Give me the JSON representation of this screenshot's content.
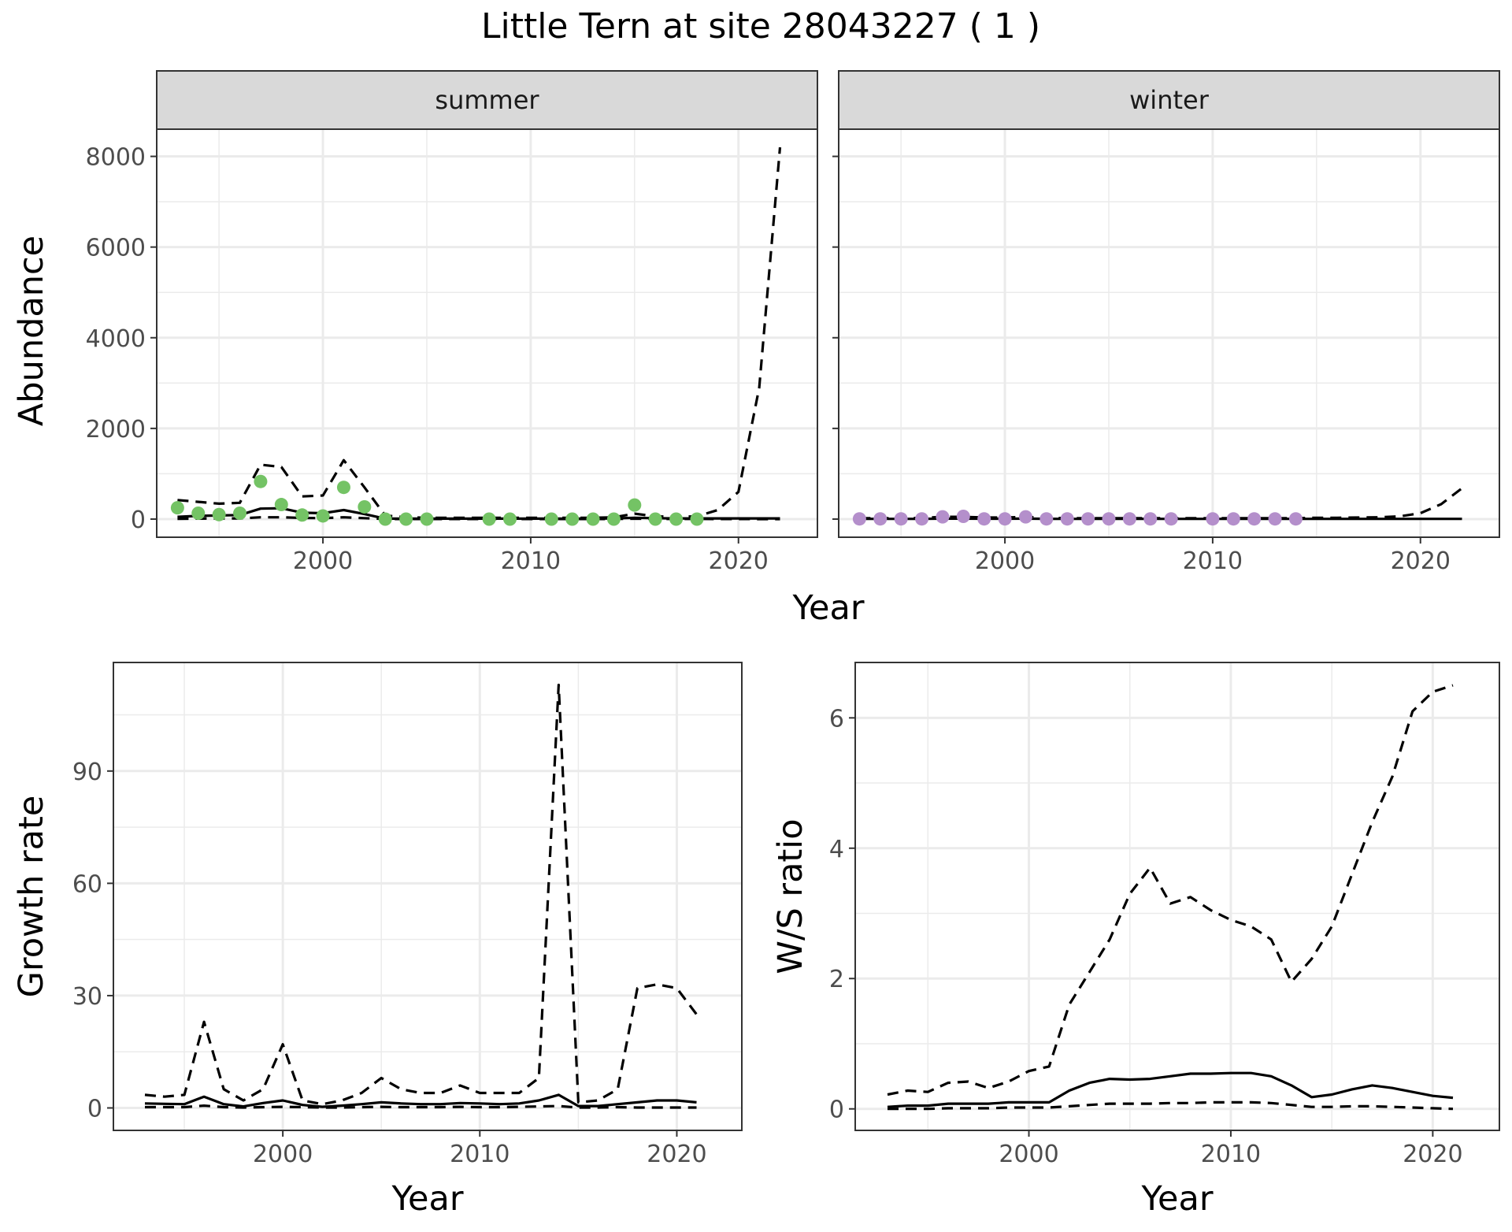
{
  "title": "Little Tern at site 28043227 ( 1 )",
  "top": {
    "x_axis_title": "Year",
    "y_axis_title": "Abundance"
  },
  "colors": {
    "summer_points": "#74c365",
    "winter_points": "#b48fcb",
    "lines": "#000000"
  },
  "chart_data": [
    {
      "type": "line",
      "facet": "summer",
      "xlabel": "Year",
      "ylabel": "Abundance",
      "xlim": [
        1992,
        2023.8
      ],
      "ylim": [
        -400,
        8600
      ],
      "x_ticks": [
        2000,
        2010,
        2020
      ],
      "y_ticks": [
        0,
        2000,
        4000,
        6000,
        8000
      ],
      "grid": true,
      "series": [
        {
          "style": "solid",
          "x": [
            1993,
            1994,
            1995,
            1996,
            1997,
            1998,
            1999,
            2000,
            2001,
            2002,
            2003,
            2004,
            2005,
            2006,
            2007,
            2008,
            2009,
            2010,
            2011,
            2012,
            2013,
            2014,
            2015,
            2016,
            2017,
            2018,
            2019,
            2020,
            2021,
            2022
          ],
          "y": [
            50,
            70,
            80,
            90,
            230,
            240,
            140,
            130,
            200,
            110,
            10,
            10,
            10,
            10,
            10,
            10,
            10,
            10,
            10,
            10,
            10,
            15,
            30,
            20,
            15,
            15,
            15,
            15,
            15,
            15
          ]
        },
        {
          "style": "dashed",
          "x": [
            1993,
            1994,
            1995,
            1996,
            1997,
            1998,
            1999,
            2000,
            2001,
            2002,
            2003,
            2004,
            2005,
            2006,
            2007,
            2008,
            2009,
            2010,
            2011,
            2012,
            2013,
            2014,
            2015,
            2016,
            2017,
            2018,
            2019,
            2020,
            2021,
            2022
          ],
          "y": [
            420,
            380,
            340,
            360,
            1200,
            1150,
            500,
            520,
            1300,
            700,
            80,
            40,
            30,
            30,
            30,
            30,
            30,
            30,
            30,
            30,
            30,
            40,
            120,
            60,
            50,
            60,
            200,
            600,
            2900,
            8200
          ]
        },
        {
          "style": "dashed",
          "x": [
            1993,
            1994,
            1995,
            1996,
            1997,
            1998,
            1999,
            2000,
            2001,
            2002,
            2003,
            2004,
            2005,
            2006,
            2007,
            2008,
            2009,
            2010,
            2011,
            2012,
            2013,
            2014,
            2015,
            2016,
            2017,
            2018,
            2019,
            2020,
            2021,
            2022
          ],
          "y": [
            5,
            10,
            15,
            15,
            40,
            40,
            25,
            20,
            40,
            20,
            2,
            2,
            2,
            2,
            2,
            2,
            2,
            2,
            2,
            2,
            2,
            3,
            8,
            4,
            3,
            3,
            2,
            1,
            0,
            0
          ]
        }
      ],
      "points": {
        "x": [
          1993,
          1994,
          1995,
          1996,
          1997,
          1998,
          1999,
          2000,
          2001,
          2002,
          2003,
          2004,
          2005,
          2008,
          2009,
          2011,
          2012,
          2013,
          2014,
          2015,
          2016,
          2017,
          2018
        ],
        "y": [
          250,
          130,
          100,
          130,
          830,
          320,
          90,
          70,
          700,
          270,
          0,
          0,
          0,
          0,
          0,
          0,
          0,
          0,
          0,
          310,
          0,
          0,
          0
        ]
      }
    },
    {
      "type": "line",
      "facet": "winter",
      "xlabel": "Year",
      "ylabel": "Abundance",
      "xlim": [
        1992,
        2023.8
      ],
      "ylim": [
        -400,
        8600
      ],
      "x_ticks": [
        2000,
        2010,
        2020
      ],
      "y_ticks": [
        0,
        2000,
        4000,
        6000,
        8000
      ],
      "grid": true,
      "series": [
        {
          "style": "solid",
          "x": [
            1993,
            1994,
            1995,
            1996,
            1997,
            1998,
            1999,
            2000,
            2001,
            2002,
            2003,
            2004,
            2005,
            2006,
            2007,
            2008,
            2009,
            2010,
            2011,
            2012,
            2013,
            2014,
            2015,
            2016,
            2017,
            2018,
            2019,
            2020,
            2021,
            2022
          ],
          "y": [
            5,
            5,
            5,
            5,
            10,
            10,
            8,
            8,
            10,
            6,
            4,
            4,
            4,
            4,
            4,
            4,
            4,
            4,
            4,
            4,
            4,
            4,
            5,
            4,
            4,
            4,
            4,
            4,
            4,
            4
          ]
        },
        {
          "style": "dashed",
          "x": [
            1993,
            1994,
            1995,
            1996,
            1997,
            1998,
            1999,
            2000,
            2001,
            2002,
            2003,
            2004,
            2005,
            2006,
            2007,
            2008,
            2009,
            2010,
            2011,
            2012,
            2013,
            2014,
            2015,
            2016,
            2017,
            2018,
            2019,
            2020,
            2021,
            2022
          ],
          "y": [
            20,
            20,
            20,
            25,
            50,
            50,
            35,
            35,
            50,
            30,
            20,
            20,
            20,
            20,
            20,
            20,
            20,
            20,
            20,
            20,
            20,
            20,
            30,
            30,
            35,
            40,
            60,
            130,
            330,
            680
          ]
        }
      ],
      "points": {
        "x": [
          1993,
          1994,
          1995,
          1996,
          1997,
          1998,
          1999,
          2000,
          2001,
          2002,
          2003,
          2004,
          2005,
          2006,
          2007,
          2008,
          2010,
          2011,
          2012,
          2013,
          2014
        ],
        "y": [
          5,
          5,
          5,
          5,
          50,
          60,
          5,
          5,
          50,
          5,
          5,
          5,
          5,
          5,
          5,
          5,
          5,
          5,
          5,
          5,
          5
        ]
      }
    },
    {
      "type": "line",
      "panel": "growth",
      "xlabel": "Year",
      "ylabel": "Growth rate",
      "xlim": [
        1991.4,
        2023.3
      ],
      "ylim": [
        -6,
        119
      ],
      "x_ticks": [
        2000,
        2010,
        2020
      ],
      "y_ticks": [
        0,
        30,
        60,
        90
      ],
      "grid": true,
      "series": [
        {
          "style": "solid",
          "x": [
            1993,
            1994,
            1995,
            1996,
            1997,
            1998,
            1999,
            2000,
            2001,
            2002,
            2003,
            2004,
            2005,
            2006,
            2007,
            2008,
            2009,
            2010,
            2011,
            2012,
            2013,
            2014,
            2015,
            2016,
            2017,
            2018,
            2019,
            2020,
            2021
          ],
          "y": [
            1.2,
            1.1,
            1.0,
            3.0,
            1.0,
            0.4,
            1.3,
            2.0,
            0.8,
            0.3,
            0.6,
            1.0,
            1.5,
            1.2,
            1.0,
            1.0,
            1.3,
            1.2,
            1.0,
            1.2,
            2.0,
            3.5,
            0.5,
            0.5,
            1.0,
            1.5,
            2.0,
            2.0,
            1.5
          ]
        },
        {
          "style": "dashed",
          "x": [
            1993,
            1994,
            1995,
            1996,
            1997,
            1998,
            1999,
            2000,
            2001,
            2002,
            2003,
            2004,
            2005,
            2006,
            2007,
            2008,
            2009,
            2010,
            2011,
            2012,
            2013,
            2014,
            2015,
            2016,
            2017,
            2018,
            2019,
            2020,
            2021
          ],
          "y": [
            3.5,
            3.0,
            3.5,
            23,
            5,
            2,
            5,
            17,
            2,
            1,
            2,
            4,
            8,
            5,
            4,
            4,
            6,
            4,
            4,
            4,
            8,
            113,
            1.5,
            2,
            5,
            32,
            33,
            32,
            25
          ]
        },
        {
          "style": "dashed",
          "x": [
            1993,
            1994,
            1995,
            1996,
            1997,
            1998,
            1999,
            2000,
            2001,
            2002,
            2003,
            2004,
            2005,
            2006,
            2007,
            2008,
            2009,
            2010,
            2011,
            2012,
            2013,
            2014,
            2015,
            2016,
            2017,
            2018,
            2019,
            2020,
            2021
          ],
          "y": [
            0.2,
            0.2,
            0.2,
            0.6,
            0.2,
            0.1,
            0.2,
            0.3,
            0.2,
            0.1,
            0.1,
            0.2,
            0.3,
            0.2,
            0.2,
            0.2,
            0.3,
            0.2,
            0.2,
            0.3,
            0.4,
            0.5,
            0.1,
            0.1,
            0.2,
            0.1,
            0.1,
            0.1,
            0.1
          ]
        }
      ]
    },
    {
      "type": "line",
      "panel": "ratio",
      "xlabel": "Year",
      "ylabel": "W/S ratio",
      "xlim": [
        1991.4,
        2023.3
      ],
      "ylim": [
        -0.33,
        6.85
      ],
      "x_ticks": [
        2000,
        2010,
        2020
      ],
      "y_ticks": [
        0,
        2,
        4,
        6
      ],
      "grid": true,
      "series": [
        {
          "style": "solid",
          "x": [
            1993,
            1994,
            1995,
            1996,
            1997,
            1998,
            1999,
            2000,
            2001,
            2002,
            2003,
            2004,
            2005,
            2006,
            2007,
            2008,
            2009,
            2010,
            2011,
            2012,
            2013,
            2014,
            2015,
            2016,
            2017,
            2018,
            2019,
            2020,
            2021
          ],
          "y": [
            0.03,
            0.05,
            0.05,
            0.08,
            0.08,
            0.08,
            0.1,
            0.1,
            0.1,
            0.28,
            0.4,
            0.46,
            0.45,
            0.46,
            0.5,
            0.54,
            0.54,
            0.55,
            0.55,
            0.5,
            0.36,
            0.18,
            0.22,
            0.3,
            0.36,
            0.32,
            0.26,
            0.2,
            0.17
          ]
        },
        {
          "style": "dashed",
          "x": [
            1993,
            1994,
            1995,
            1996,
            1997,
            1998,
            1999,
            2000,
            2001,
            2002,
            2003,
            2004,
            2005,
            2006,
            2007,
            2008,
            2009,
            2010,
            2011,
            2012,
            2013,
            2014,
            2015,
            2016,
            2017,
            2018,
            2019,
            2020,
            2021
          ],
          "y": [
            0.22,
            0.28,
            0.26,
            0.4,
            0.42,
            0.32,
            0.42,
            0.58,
            0.65,
            1.6,
            2.1,
            2.6,
            3.3,
            3.7,
            3.15,
            3.25,
            3.05,
            2.9,
            2.8,
            2.6,
            1.95,
            2.3,
            2.8,
            3.6,
            4.4,
            5.1,
            6.1,
            6.4,
            6.5
          ]
        },
        {
          "style": "dashed",
          "x": [
            1993,
            1994,
            1995,
            1996,
            1997,
            1998,
            1999,
            2000,
            2001,
            2002,
            2003,
            2004,
            2005,
            2006,
            2007,
            2008,
            2009,
            2010,
            2011,
            2012,
            2013,
            2014,
            2015,
            2016,
            2017,
            2018,
            2019,
            2020,
            2021
          ],
          "y": [
            0.0,
            0.0,
            0.0,
            0.01,
            0.01,
            0.01,
            0.02,
            0.02,
            0.02,
            0.04,
            0.06,
            0.08,
            0.08,
            0.08,
            0.09,
            0.09,
            0.1,
            0.1,
            0.1,
            0.09,
            0.06,
            0.03,
            0.03,
            0.04,
            0.04,
            0.03,
            0.02,
            0.01,
            0.0
          ]
        }
      ]
    }
  ]
}
